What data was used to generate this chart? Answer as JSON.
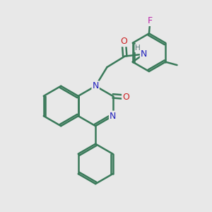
{
  "background_color": "#e8e8e8",
  "bond_color": "#3a7a5a",
  "bond_width": 1.8,
  "atom_colors": {
    "N": "#2020bb",
    "O": "#cc2020",
    "F": "#bb22aa",
    "H": "#557777",
    "C": "#3a7a5a"
  },
  "font_size": 9,
  "fig_size": [
    3.0,
    3.0
  ],
  "dpi": 100,
  "ring_r": 0.95
}
